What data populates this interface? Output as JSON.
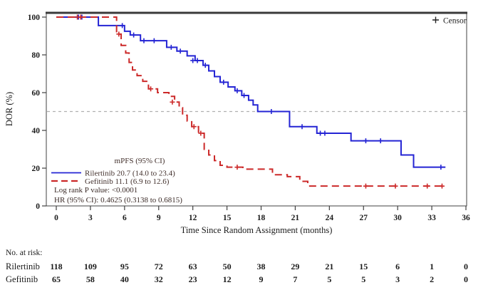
{
  "chart_data": {
    "type": "line",
    "subtype": "kaplan-meier-step",
    "title": "",
    "xlabel": "Time Since Random Assignment (months)",
    "ylabel": "DOR (%)",
    "xlim": [
      0,
      36
    ],
    "ylim": [
      0,
      100
    ],
    "xticks": [
      0,
      3,
      6,
      9,
      12,
      15,
      18,
      21,
      24,
      27,
      30,
      33,
      36
    ],
    "yticks": [
      0,
      20,
      40,
      60,
      80,
      100
    ],
    "reference_line_y": 50,
    "grid": "off",
    "censor_legend": {
      "symbol": "+",
      "label": "Censor"
    },
    "legend": {
      "position": "inside-lower-left",
      "header": "mPFS (95% CI)",
      "entries": [
        {
          "name": "Rilertinib",
          "label": "Rilertinib 20.7 (14.0 to 23.4)",
          "median": 20.7,
          "ci": "14.0 to 23.4",
          "color": "#2424d4",
          "line_style": "solid"
        },
        {
          "name": "Gefitinib",
          "label": "Gefitinib 11.1 (6.9 to 12.6)",
          "median": 11.1,
          "ci": "6.9 to 12.6",
          "color": "#cc2929",
          "line_style": "dashed"
        }
      ]
    },
    "stats": [
      "Log rank P value: <0.0001",
      "HR (95% CI): 0.4625 (0.3138 to 0.6815)"
    ],
    "colors": {
      "rilertinib": "#2424d4",
      "gefitinib": "#cc2929",
      "reference_line": "#b0b0b0",
      "axis": "#404040"
    },
    "series": [
      {
        "name": "Rilertinib",
        "color": "#2424d4",
        "style": "solid",
        "steps": [
          [
            0,
            100
          ],
          [
            3.7,
            95.5
          ],
          [
            6.0,
            92.5
          ],
          [
            6.5,
            90.5
          ],
          [
            7.4,
            87.5
          ],
          [
            9.7,
            84
          ],
          [
            10.6,
            82
          ],
          [
            11.5,
            79.5
          ],
          [
            12.2,
            77
          ],
          [
            12.9,
            74.5
          ],
          [
            13.4,
            71.5
          ],
          [
            13.9,
            68.5
          ],
          [
            14.4,
            65.5
          ],
          [
            15.1,
            63
          ],
          [
            15.7,
            61
          ],
          [
            16.3,
            58.5
          ],
          [
            16.9,
            56
          ],
          [
            17.3,
            53.5
          ],
          [
            17.7,
            50
          ],
          [
            20.5,
            42
          ],
          [
            22.9,
            38.5
          ],
          [
            25.9,
            34.5
          ],
          [
            30.3,
            27
          ],
          [
            31.4,
            20.5
          ],
          [
            34.2,
            20.5
          ]
        ],
        "censors": [
          [
            1.95,
            100
          ],
          [
            2.25,
            100
          ],
          [
            5.8,
            95.5
          ],
          [
            6.8,
            90.5
          ],
          [
            7.7,
            87.5
          ],
          [
            8.6,
            87.5
          ],
          [
            10.1,
            84
          ],
          [
            10.9,
            82
          ],
          [
            12.0,
            77
          ],
          [
            12.4,
            77
          ],
          [
            13.1,
            74.5
          ],
          [
            14.7,
            65.5
          ],
          [
            15.9,
            61
          ],
          [
            16.5,
            58.5
          ],
          [
            18.9,
            50
          ],
          [
            21.6,
            42
          ],
          [
            23.2,
            38.5
          ],
          [
            23.6,
            38.5
          ],
          [
            27.2,
            34.5
          ],
          [
            28.5,
            34.5
          ],
          [
            33.8,
            20.5
          ]
        ]
      },
      {
        "name": "Gefitinib",
        "color": "#cc2929",
        "style": "dashed",
        "steps": [
          [
            0,
            100
          ],
          [
            5.3,
            91
          ],
          [
            5.7,
            85
          ],
          [
            6.1,
            81
          ],
          [
            6.4,
            76
          ],
          [
            6.7,
            72
          ],
          [
            7.1,
            69
          ],
          [
            7.6,
            66
          ],
          [
            8.1,
            62
          ],
          [
            8.9,
            60
          ],
          [
            9.9,
            58
          ],
          [
            10.4,
            55
          ],
          [
            10.8,
            52
          ],
          [
            11.1,
            48
          ],
          [
            11.5,
            45
          ],
          [
            11.9,
            42
          ],
          [
            12.5,
            38.5
          ],
          [
            13.0,
            30
          ],
          [
            13.4,
            27
          ],
          [
            13.9,
            24
          ],
          [
            14.4,
            21.5
          ],
          [
            15.0,
            20.5
          ],
          [
            16.4,
            19.5
          ],
          [
            19.0,
            16.5
          ],
          [
            20.3,
            15.5
          ],
          [
            21.4,
            13
          ],
          [
            22.1,
            10.5
          ],
          [
            34.2,
            10.5
          ]
        ],
        "censors": [
          [
            1.85,
            100
          ],
          [
            2.15,
            100
          ],
          [
            5.5,
            91
          ],
          [
            8.3,
            62
          ],
          [
            10.2,
            55
          ],
          [
            12.1,
            42
          ],
          [
            12.7,
            38.5
          ],
          [
            15.9,
            20.5
          ],
          [
            27.2,
            10.5
          ],
          [
            29.8,
            10.5
          ],
          [
            32.6,
            10.5
          ],
          [
            33.9,
            10.5
          ]
        ]
      }
    ],
    "risk_table": {
      "title": "No. at risk:",
      "times": [
        0,
        3,
        6,
        9,
        12,
        15,
        18,
        21,
        24,
        27,
        30,
        33,
        36
      ],
      "rows": [
        {
          "name": "Rilertinib",
          "values": [
            118,
            109,
            95,
            72,
            63,
            50,
            38,
            29,
            21,
            15,
            6,
            1,
            0
          ]
        },
        {
          "name": "Gefitinib",
          "values": [
            65,
            58,
            40,
            32,
            23,
            12,
            9,
            7,
            5,
            5,
            3,
            2,
            0
          ]
        }
      ]
    }
  }
}
